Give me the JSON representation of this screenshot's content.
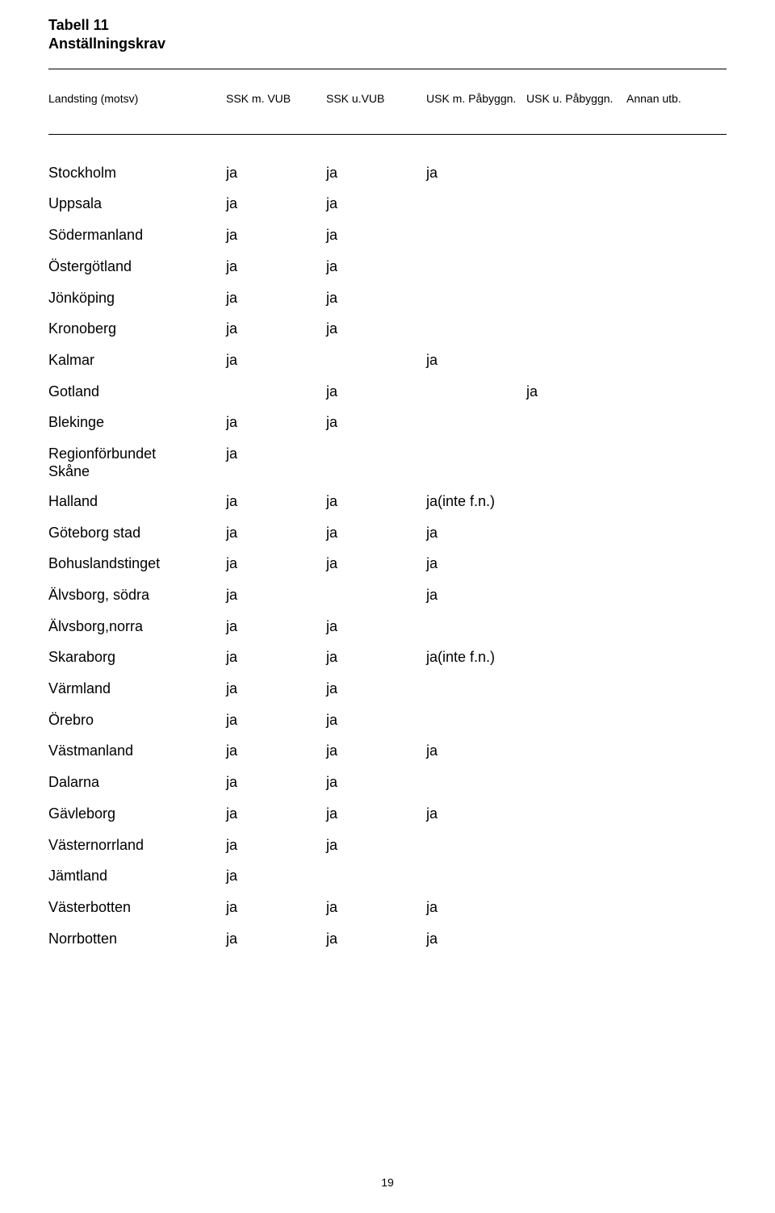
{
  "title": {
    "line1": "Tabell 11",
    "line2": "Anställningskrav"
  },
  "headers": {
    "name": "Landsting (motsv)",
    "c1": "SSK m. VUB",
    "c2": "SSK u.VUB",
    "c3": "USK m. Påbyggn.",
    "c4": "USK u. Påbyggn.",
    "c5": "Annan utb."
  },
  "rows": [
    {
      "name": "Stockholm",
      "c1": "ja",
      "c2": "ja",
      "c3": "ja",
      "c4": "",
      "c5": ""
    },
    {
      "name": "Uppsala",
      "c1": "ja",
      "c2": "ja",
      "c3": "",
      "c4": "",
      "c5": ""
    },
    {
      "name": "Södermanland",
      "c1": "ja",
      "c2": "ja",
      "c3": "",
      "c4": "",
      "c5": ""
    },
    {
      "name": "Östergötland",
      "c1": "ja",
      "c2": "ja",
      "c3": "",
      "c4": "",
      "c5": ""
    },
    {
      "name": "Jönköping",
      "c1": "ja",
      "c2": "ja",
      "c3": "",
      "c4": "",
      "c5": ""
    },
    {
      "name": "Kronoberg",
      "c1": "ja",
      "c2": "ja",
      "c3": "",
      "c4": "",
      "c5": ""
    },
    {
      "name": "Kalmar",
      "c1": "ja",
      "c2": "",
      "c3": "ja",
      "c4": "",
      "c5": ""
    },
    {
      "name": "Gotland",
      "c1": "",
      "c2": "ja",
      "c3": "",
      "c4": "ja",
      "c5": ""
    },
    {
      "name": "Blekinge",
      "c1": "ja",
      "c2": "ja",
      "c3": "",
      "c4": "",
      "c5": ""
    },
    {
      "name": "Regionförbundet\nSkåne",
      "c1": "ja",
      "c2": "",
      "c3": "",
      "c4": "",
      "c5": ""
    },
    {
      "name": "Halland",
      "c1": "ja",
      "c2": "ja",
      "c3": "ja(inte f.n.)",
      "c4": "",
      "c5": ""
    },
    {
      "name": "Göteborg stad",
      "c1": "ja",
      "c2": "ja",
      "c3": "ja",
      "c4": "",
      "c5": ""
    },
    {
      "name": "Bohuslandstinget",
      "c1": "ja",
      "c2": "ja",
      "c3": "ja",
      "c4": "",
      "c5": ""
    },
    {
      "name": "Älvsborg, södra",
      "c1": "ja",
      "c2": "",
      "c3": "ja",
      "c4": "",
      "c5": ""
    },
    {
      "name": "Älvsborg,norra",
      "c1": "ja",
      "c2": "ja",
      "c3": "",
      "c4": "",
      "c5": ""
    },
    {
      "name": "Skaraborg",
      "c1": "ja",
      "c2": "ja",
      "c3": "ja(inte f.n.)",
      "c4": "",
      "c5": ""
    },
    {
      "name": "Värmland",
      "c1": "ja",
      "c2": "ja",
      "c3": "",
      "c4": "",
      "c5": ""
    },
    {
      "name": "Örebro",
      "c1": "ja",
      "c2": "ja",
      "c3": "",
      "c4": "",
      "c5": ""
    },
    {
      "name": "Västmanland",
      "c1": "ja",
      "c2": "ja",
      "c3": "ja",
      "c4": "",
      "c5": ""
    },
    {
      "name": "Dalarna",
      "c1": "ja",
      "c2": "ja",
      "c3": "",
      "c4": "",
      "c5": ""
    },
    {
      "name": "Gävleborg",
      "c1": "ja",
      "c2": "ja",
      "c3": "ja",
      "c4": "",
      "c5": ""
    },
    {
      "name": "Västernorrland",
      "c1": "ja",
      "c2": "ja",
      "c3": "",
      "c4": "",
      "c5": ""
    },
    {
      "name": "Jämtland",
      "c1": "ja",
      "c2": "",
      "c3": "",
      "c4": "",
      "c5": ""
    },
    {
      "name": "Västerbotten",
      "c1": "ja",
      "c2": "ja",
      "c3": "ja",
      "c4": "",
      "c5": ""
    },
    {
      "name": "Norrbotten",
      "c1": "ja",
      "c2": "ja",
      "c3": "ja",
      "c4": "",
      "c5": ""
    }
  ],
  "pageNumber": "19"
}
